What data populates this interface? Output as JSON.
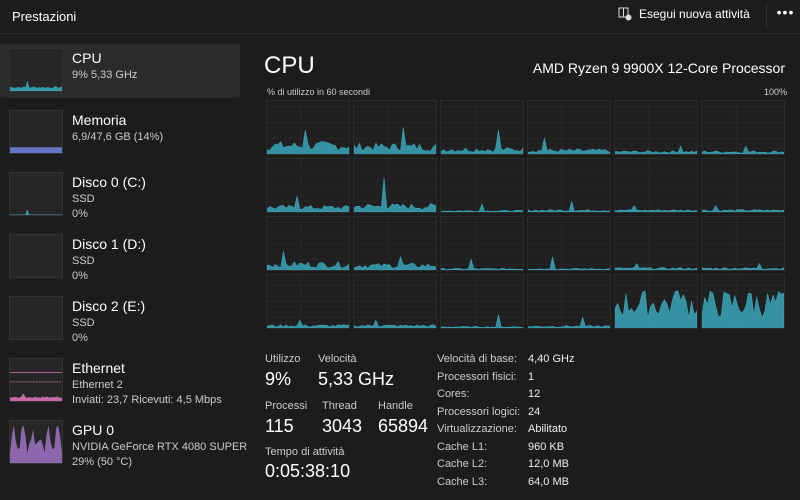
{
  "header": {
    "title": "Prestazioni",
    "run_task": "Esegui nuova attività",
    "more": "•••"
  },
  "sidebar": [
    {
      "name": "CPU",
      "line2": "9%  5,33 GHz",
      "line3": ""
    },
    {
      "name": "Memoria",
      "line2": "6,9/47,6 GB (14%)",
      "line3": ""
    },
    {
      "name": "Disco 0 (C:)",
      "line2": "SSD",
      "line3": "0%"
    },
    {
      "name": "Disco 1 (D:)",
      "line2": "SSD",
      "line3": "0%"
    },
    {
      "name": "Disco 2 (E:)",
      "line2": "SSD",
      "line3": "0%"
    },
    {
      "name": "Ethernet",
      "line2": "Ethernet 2",
      "line3": "Inviati: 23,7 Ricevuti: 4,5 Mbps"
    },
    {
      "name": "GPU 0",
      "line2": "NVIDIA GeForce RTX 4080 SUPER",
      "line3": "29%  (50 °C)"
    }
  ],
  "main": {
    "title": "CPU",
    "processor": "AMD Ryzen 9 9900X 12-Core Processor",
    "graph_label": "% di utilizzo in 60 secondi",
    "graph_max": "100%",
    "core_usage": [
      {
        "avg": 15,
        "peak": 45
      },
      {
        "avg": 13,
        "peak": 50
      },
      {
        "avg": 8,
        "peak": 45
      },
      {
        "avg": 6,
        "peak": 30
      },
      {
        "avg": 4,
        "peak": 15
      },
      {
        "avg": 4,
        "peak": 15
      },
      {
        "avg": 8,
        "peak": 30
      },
      {
        "avg": 10,
        "peak": 65
      },
      {
        "avg": 2,
        "peak": 15
      },
      {
        "avg": 3,
        "peak": 20
      },
      {
        "avg": 3,
        "peak": 12
      },
      {
        "avg": 3,
        "peak": 12
      },
      {
        "avg": 10,
        "peak": 35
      },
      {
        "avg": 8,
        "peak": 25
      },
      {
        "avg": 2,
        "peak": 20
      },
      {
        "avg": 2,
        "peak": 25
      },
      {
        "avg": 3,
        "peak": 12
      },
      {
        "avg": 3,
        "peak": 12
      },
      {
        "avg": 4,
        "peak": 15
      },
      {
        "avg": 4,
        "peak": 15
      },
      {
        "avg": 2,
        "peak": 25
      },
      {
        "avg": 3,
        "peak": 20
      },
      {
        "avg": 45,
        "peak": 70
      },
      {
        "avg": 45,
        "peak": 65
      }
    ],
    "stats": {
      "util_label": "Utilizzo",
      "util": "9%",
      "speed_label": "Velocità",
      "speed": "5,33 GHz",
      "proc_label": "Processi",
      "proc": "115",
      "thread_label": "Thread",
      "thread": "3043",
      "handle_label": "Handle",
      "handle": "65894",
      "uptime_label": "Tempo di attività",
      "uptime": "0:05:38:10"
    },
    "details": [
      {
        "k": "Velocità di base:",
        "v": "4,40 GHz"
      },
      {
        "k": "Processori fisici:",
        "v": "1"
      },
      {
        "k": "Cores:",
        "v": "12"
      },
      {
        "k": "Processori logici:",
        "v": "24"
      },
      {
        "k": "Virtualizzazione:",
        "v": "Abilitato"
      },
      {
        "k": "Cache L1:",
        "v": "960 KB"
      },
      {
        "k": "Cache L2:",
        "v": "12,0 MB"
      },
      {
        "k": "Cache L3:",
        "v": "64,0 MB"
      }
    ]
  },
  "colors": {
    "cpu": "#3aa6b9",
    "memory": "#6f7fd1",
    "ethernet": "#d873b4",
    "gpu": "#a878d0"
  }
}
